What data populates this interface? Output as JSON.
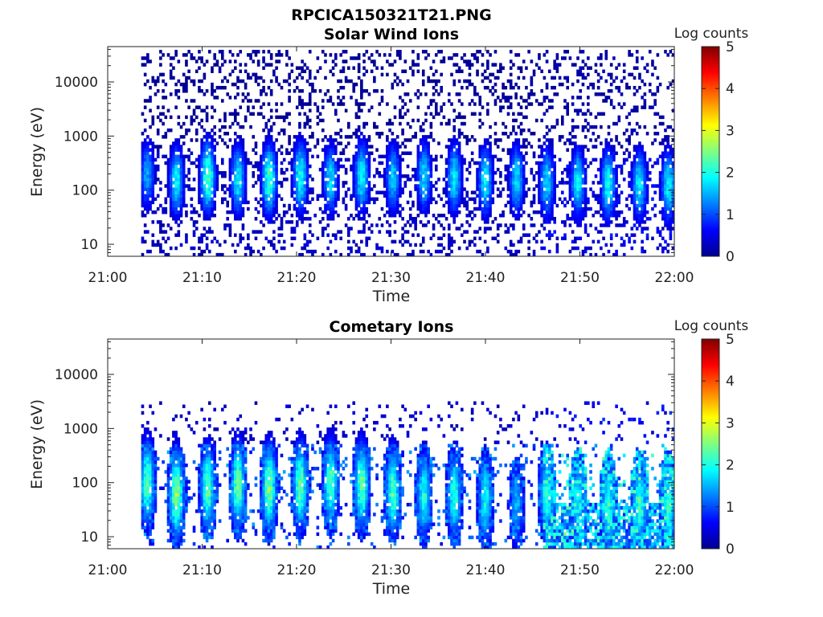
{
  "figure_title": "RPCICA150321T21.PNG",
  "chart_data": [
    {
      "type": "heatmap",
      "title": "Solar Wind Ions",
      "xlabel": "Time",
      "ylabel": "Energy (eV)",
      "x_ticks": [
        "21:00",
        "21:10",
        "21:20",
        "21:30",
        "21:40",
        "21:50",
        "22:00"
      ],
      "xlim": [
        "21:00",
        "22:00"
      ],
      "y_ticks": [
        10,
        100,
        1000,
        10000
      ],
      "y_tick_labels": [
        "10",
        "100",
        "1000",
        "10000"
      ],
      "ylim": [
        6,
        45000
      ],
      "yscale": "log",
      "colorbar": {
        "label": "Log counts",
        "range": [
          0,
          5
        ],
        "ticks": [
          "0",
          "1",
          "2",
          "3",
          "4",
          "5"
        ],
        "colormap": "jet"
      },
      "sweep_minutes": [
        4.2,
        7.3,
        10.6,
        13.8,
        17.1,
        20.4,
        23.6,
        26.9,
        30.2,
        33.5,
        36.7,
        40.0,
        43.3,
        46.5,
        49.8,
        53.0,
        56.3,
        59.4
      ],
      "sweep_peak_log_counts": [
        1.4,
        1.8,
        2.3,
        1.8,
        2.2,
        2.0,
        1.7,
        1.9,
        1.6,
        1.7,
        1.8,
        1.8,
        1.7,
        1.7,
        1.8,
        1.9,
        1.8,
        1.9
      ],
      "sweep_peak_energy_ev": [
        200,
        150,
        180,
        160,
        160,
        180,
        160,
        180,
        170,
        180,
        170,
        150,
        160,
        140,
        140,
        130,
        130,
        120
      ],
      "background_log_counts": 0.3
    },
    {
      "type": "heatmap",
      "title": "Cometary Ions",
      "xlabel": "Time",
      "ylabel": "Energy (eV)",
      "x_ticks": [
        "21:00",
        "21:10",
        "21:20",
        "21:30",
        "21:40",
        "21:50",
        "22:00"
      ],
      "xlim": [
        "21:00",
        "22:00"
      ],
      "y_ticks": [
        10,
        100,
        1000,
        10000
      ],
      "y_tick_labels": [
        "10",
        "100",
        "1000",
        "10000"
      ],
      "ylim": [
        6,
        45000
      ],
      "yscale": "log",
      "colorbar": {
        "label": "Log counts",
        "range": [
          0,
          5
        ],
        "ticks": [
          "0",
          "1",
          "2",
          "3",
          "4",
          "5"
        ],
        "colormap": "jet"
      },
      "sweep_minutes": [
        4.2,
        7.3,
        10.6,
        13.8,
        17.1,
        20.4,
        23.6,
        26.9,
        30.2,
        33.5,
        36.7,
        40.0,
        43.3,
        46.5,
        49.8,
        53.0,
        56.3,
        59.4
      ],
      "sweep_peak_log_counts": [
        2.3,
        2.6,
        2.3,
        2.4,
        2.5,
        2.4,
        2.3,
        2.4,
        2.3,
        2.0,
        2.1,
        2.0,
        1.5,
        2.0,
        1.9,
        2.1,
        2.2,
        2.1
      ],
      "sweep_peak_energy_ev": [
        100,
        60,
        80,
        90,
        80,
        90,
        100,
        90,
        70,
        60,
        60,
        50,
        40,
        60,
        50,
        40,
        40,
        40
      ],
      "background_log_counts": 0.9
    }
  ]
}
